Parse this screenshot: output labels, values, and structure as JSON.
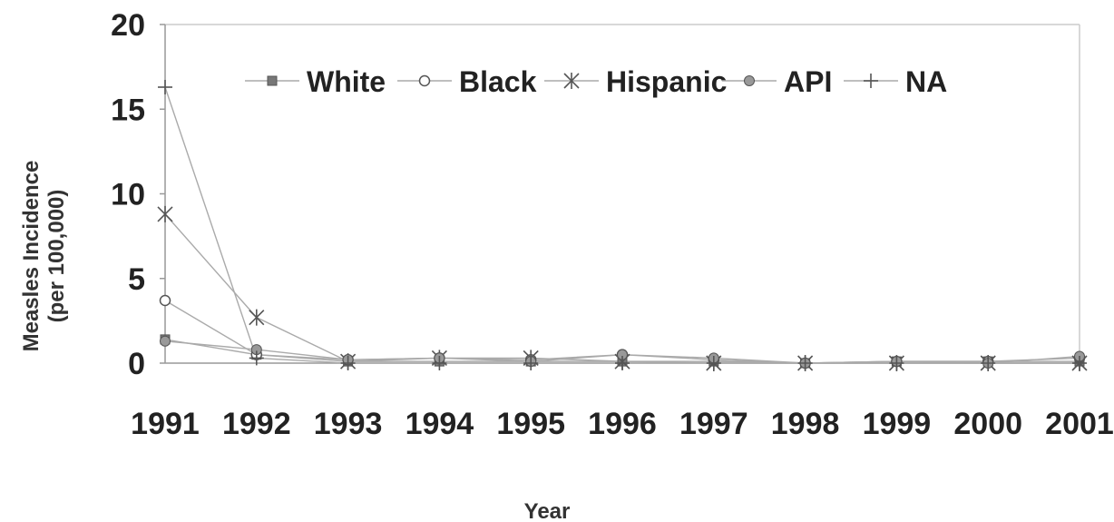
{
  "chart_data": {
    "type": "line",
    "title": "",
    "xlabel": "Year",
    "ylabel_line1": "Measles Incidence",
    "ylabel_line2": "(per 100,000)",
    "categories": [
      "1991",
      "1992",
      "1993",
      "1994",
      "1995",
      "1996",
      "1997",
      "1998",
      "1999",
      "2000",
      "2001"
    ],
    "ylim": [
      0,
      20
    ],
    "yticks": [
      "0",
      "5",
      "10",
      "15",
      "20"
    ],
    "grid": false,
    "legend_position": "top",
    "series": [
      {
        "name": "White",
        "marker": "square",
        "values": [
          1.4,
          0.5,
          0.1,
          0.1,
          0.1,
          0.1,
          0.1,
          0.0,
          0.1,
          0.1,
          0.1
        ]
      },
      {
        "name": "Black",
        "marker": "circle",
        "values": [
          3.7,
          0.5,
          0.2,
          0.3,
          0.2,
          0.5,
          0.2,
          0.0,
          0.1,
          0.1,
          0.3
        ]
      },
      {
        "name": "Hispanic",
        "marker": "asterisk",
        "values": [
          8.8,
          2.7,
          0.1,
          0.3,
          0.3,
          0.1,
          0.0,
          0.0,
          0.0,
          0.0,
          0.0
        ]
      },
      {
        "name": "API",
        "marker": "dot",
        "values": [
          1.3,
          0.8,
          0.2,
          0.3,
          0.1,
          0.5,
          0.3,
          0.0,
          0.1,
          0.0,
          0.4
        ]
      },
      {
        "name": "NA",
        "marker": "plus",
        "values": [
          16.3,
          0.3,
          0.0,
          0.0,
          0.0,
          0.0,
          0.0,
          0.0,
          0.0,
          0.0,
          0.0
        ]
      }
    ],
    "colors": {
      "line": "#aaaaaa",
      "marker": "#555555",
      "axis": "#999999"
    }
  }
}
